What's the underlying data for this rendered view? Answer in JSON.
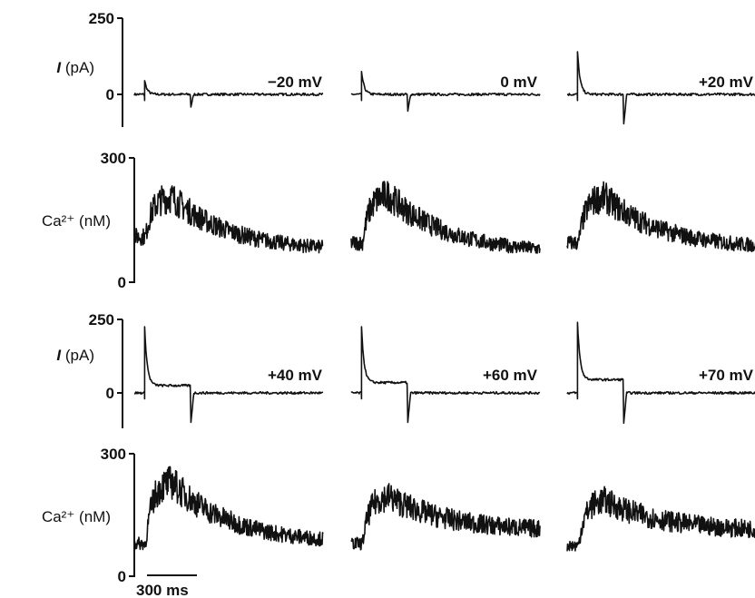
{
  "figure": {
    "current_ylabel": "(pA)",
    "current_ylabel_symbol": "I",
    "calcium_ylabel": "(nM)",
    "calcium_ylabel_symbol": "Ca²⁺",
    "scale_bar_label": "300 ms"
  },
  "chart_data": [
    {
      "type": "line",
      "row": "current-top",
      "ylabel": "I (pA)",
      "yticks": [
        0,
        250
      ],
      "ylim": [
        -100,
        260
      ],
      "panels": [
        {
          "label": "−20 mV",
          "voltage": -20,
          "peak": 45,
          "tail": -40,
          "sustained": 0
        },
        {
          "label": "0 mV",
          "voltage": 0,
          "peak": 75,
          "tail": -55,
          "sustained": 0
        },
        {
          "label": "+20 mV",
          "voltage": 20,
          "peak": 140,
          "tail": -95,
          "sustained": 0
        }
      ]
    },
    {
      "type": "line",
      "row": "calcium-top",
      "ylabel": "Ca²⁺ (nM)",
      "yticks": [
        0,
        300
      ],
      "ylim": [
        0,
        300
      ],
      "panels": [
        {
          "baseline": 110,
          "peak": 205,
          "end": 75
        },
        {
          "baseline": 95,
          "peak": 210,
          "end": 70
        },
        {
          "baseline": 95,
          "peak": 205,
          "end": 80
        }
      ]
    },
    {
      "type": "line",
      "row": "current-bottom",
      "ylabel": "I (pA)",
      "yticks": [
        0,
        250
      ],
      "ylim": [
        -100,
        260
      ],
      "panels": [
        {
          "label": "+40 mV",
          "voltage": 40,
          "peak": 225,
          "tail": -100,
          "sustained": 25
        },
        {
          "label": "+60 mV",
          "voltage": 60,
          "peak": 225,
          "tail": -100,
          "sustained": 35
        },
        {
          "label": "+70 mV",
          "voltage": 70,
          "peak": 240,
          "tail": -100,
          "sustained": 45
        }
      ]
    },
    {
      "type": "line",
      "row": "calcium-bottom",
      "ylabel": "Ca²⁺ (nM)",
      "yticks": [
        0,
        300
      ],
      "ylim": [
        0,
        300
      ],
      "panels": [
        {
          "baseline": 80,
          "peak": 230,
          "end": 80
        },
        {
          "baseline": 80,
          "peak": 195,
          "end": 110
        },
        {
          "baseline": 75,
          "peak": 185,
          "end": 110
        }
      ]
    }
  ]
}
